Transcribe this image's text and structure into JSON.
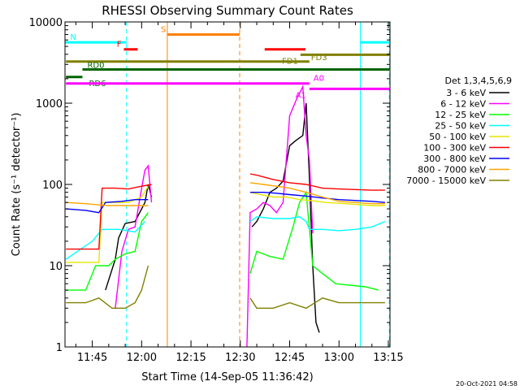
{
  "chart_data": {
    "type": "line",
    "title": "RHESSI Observing Summary Count Rates",
    "xlabel": "Start Time (14-Sep-05 11:36:42)",
    "ylabel": "Count Rate (s⁻¹ detector⁻¹)",
    "y_scale": "log",
    "ylim": [
      1,
      10000
    ],
    "xlim_minutes": [
      696.7,
      795.5
    ],
    "x_ticks": [
      {
        "label": "11:45",
        "min": 705
      },
      {
        "label": "12:00",
        "min": 720
      },
      {
        "label": "12:15",
        "min": 735
      },
      {
        "label": "12:30",
        "min": 750
      },
      {
        "label": "12:45",
        "min": 765
      },
      {
        "label": "13:00",
        "min": 780
      },
      {
        "label": "13:15",
        "min": 795
      }
    ],
    "y_ticks": [
      {
        "label": "1",
        "value": 1
      },
      {
        "label": "10",
        "value": 10
      },
      {
        "label": "100",
        "value": 100
      },
      {
        "label": "1000",
        "value": 1000
      },
      {
        "label": "10000",
        "value": 10000
      }
    ],
    "legend_title": "Det 1,3,4,5,6,9",
    "legend_position": "right",
    "series": [
      {
        "name": "3 - 6 keV",
        "color": "#000000",
        "segments": [
          [
            [
              709,
              5
            ],
            [
              712,
              12
            ],
            [
              713,
              22
            ],
            [
              715,
              33
            ],
            [
              718,
              35
            ],
            [
              721,
              60
            ],
            [
              722,
              100
            ],
            [
              723,
              70
            ]
          ],
          [
            [
              753.5,
              30
            ],
            [
              755,
              35
            ],
            [
              757,
              50
            ],
            [
              759,
              80
            ],
            [
              761,
              90
            ],
            [
              763,
              110
            ],
            [
              765,
              300
            ],
            [
              767,
              350
            ],
            [
              769,
              400
            ],
            [
              770,
              1000
            ],
            [
              771,
              120
            ],
            [
              772,
              10
            ],
            [
              773,
              2
            ],
            [
              774,
              1.5
            ]
          ]
        ]
      },
      {
        "name": "6 - 12 keV",
        "color": "#ff00ff",
        "segments": [
          [
            [
              712,
              3
            ],
            [
              714,
              15
            ],
            [
              716,
              28
            ],
            [
              718,
              30
            ],
            [
              720,
              90
            ],
            [
              721,
              150
            ],
            [
              722,
              170
            ],
            [
              723,
              60
            ]
          ],
          [
            [
              752,
              1
            ],
            [
              753,
              45
            ],
            [
              755,
              50
            ],
            [
              757,
              60
            ],
            [
              759,
              55
            ],
            [
              761,
              45
            ],
            [
              763,
              60
            ],
            [
              765,
              700
            ],
            [
              767,
              1100
            ],
            [
              769,
              1600
            ],
            [
              770,
              400
            ],
            [
              771,
              200
            ],
            [
              772,
              25
            ]
          ]
        ]
      },
      {
        "name": "12 - 25 keV",
        "color": "#00ff00",
        "segments": [
          [
            [
              697,
              5
            ],
            [
              703,
              5
            ],
            [
              706,
              10
            ],
            [
              710,
              10
            ],
            [
              712,
              12
            ],
            [
              715,
              14
            ],
            [
              718,
              15
            ],
            [
              720,
              35
            ],
            [
              722,
              45
            ]
          ],
          [
            [
              753,
              8
            ],
            [
              755,
              15
            ],
            [
              759,
              13
            ],
            [
              763,
              12
            ],
            [
              766,
              30
            ],
            [
              768,
              60
            ],
            [
              770,
              80
            ],
            [
              772,
              10
            ],
            [
              775,
              8
            ],
            [
              779,
              6
            ],
            [
              788,
              5.5
            ],
            [
              792,
              5
            ]
          ]
        ]
      },
      {
        "name": "25 - 50 keV",
        "color": "#00ffff",
        "segments": [
          [
            [
              697,
              12
            ],
            [
              705,
              20
            ],
            [
              708,
              28
            ],
            [
              713,
              28
            ],
            [
              718,
              26
            ],
            [
              721,
              35
            ]
          ],
          [
            [
              753,
              35
            ],
            [
              755,
              40
            ],
            [
              760,
              38
            ],
            [
              765,
              38
            ],
            [
              768,
              40
            ],
            [
              770,
              35
            ],
            [
              771,
              28
            ],
            [
              775,
              28
            ],
            [
              780,
              27
            ],
            [
              785,
              28
            ],
            [
              790,
              30
            ],
            [
              794,
              35
            ]
          ]
        ]
      },
      {
        "name": "50 - 100 keV",
        "color": "#e6e600",
        "segments": [
          [
            [
              697,
              11
            ],
            [
              703,
              11
            ],
            [
              707,
              11
            ],
            [
              708,
              60
            ],
            [
              712,
              60
            ],
            [
              716,
              60
            ],
            [
              720,
              70
            ],
            [
              722,
              95
            ]
          ],
          [
            [
              753,
              80
            ],
            [
              756,
              75
            ],
            [
              760,
              70
            ],
            [
              764,
              70
            ],
            [
              768,
              65
            ],
            [
              772,
              63
            ],
            [
              776,
              60
            ],
            [
              782,
              58
            ],
            [
              790,
              55
            ],
            [
              794,
              55
            ]
          ]
        ]
      },
      {
        "name": "100 - 300 keV",
        "color": "#ff0000",
        "segments": [
          [
            [
              697,
              16
            ],
            [
              703,
              16
            ],
            [
              707,
              16
            ],
            [
              708,
              90
            ],
            [
              712,
              90
            ],
            [
              716,
              88
            ],
            [
              720,
              95
            ],
            [
              723,
              100
            ]
          ],
          [
            [
              753,
              135
            ],
            [
              755,
              130
            ],
            [
              760,
              115
            ],
            [
              765,
              105
            ],
            [
              770,
              100
            ],
            [
              775,
              90
            ],
            [
              780,
              88
            ],
            [
              790,
              85
            ],
            [
              794,
              85
            ]
          ]
        ]
      },
      {
        "name": "300 - 800 keV",
        "color": "#0000ff",
        "segments": [
          [
            [
              697,
              50
            ],
            [
              703,
              48
            ],
            [
              707,
              45
            ],
            [
              709,
              60
            ],
            [
              714,
              62
            ],
            [
              718,
              65
            ],
            [
              722,
              65
            ]
          ],
          [
            [
              753,
              80
            ],
            [
              757,
              80
            ],
            [
              761,
              78
            ],
            [
              765,
              75
            ],
            [
              770,
              72
            ],
            [
              775,
              68
            ],
            [
              780,
              65
            ],
            [
              790,
              62
            ],
            [
              794,
              60
            ]
          ]
        ]
      },
      {
        "name": "800 - 7000 keV",
        "color": "#ffa500",
        "segments": [
          [
            [
              697,
              60
            ],
            [
              703,
              58
            ],
            [
              707,
              56
            ],
            [
              710,
              55
            ],
            [
              714,
              55
            ],
            [
              718,
              55
            ],
            [
              722,
              55
            ]
          ],
          [
            [
              753,
              105
            ],
            [
              757,
              100
            ],
            [
              761,
              95
            ],
            [
              765,
              90
            ],
            [
              770,
              80
            ],
            [
              775,
              70
            ],
            [
              780,
              62
            ],
            [
              790,
              58
            ],
            [
              794,
              58
            ]
          ]
        ]
      },
      {
        "name": "7000 - 15000 keV",
        "color": "#808000",
        "segments": [
          [
            [
              697,
              3.5
            ],
            [
              703,
              3.5
            ],
            [
              707,
              4
            ],
            [
              711,
              3
            ],
            [
              715,
              3
            ],
            [
              718,
              3.5
            ],
            [
              720,
              5
            ],
            [
              722,
              10
            ]
          ],
          [
            [
              753,
              4
            ],
            [
              755,
              3
            ],
            [
              760,
              3
            ],
            [
              765,
              3.5
            ],
            [
              770,
              3
            ],
            [
              775,
              4
            ],
            [
              780,
              3.5
            ],
            [
              790,
              3.5
            ],
            [
              794,
              3.5
            ]
          ]
        ]
      }
    ],
    "annotations": [
      {
        "label": "N",
        "color": "#00ffff",
        "y": 5600,
        "bars": [
          [
            696.8,
            715.4
          ],
          [
            786.5,
            795.3
          ]
        ]
      },
      {
        "label": "S",
        "color": "#ff8000",
        "y": 7000,
        "bars": [
          [
            727.8,
            749.8
          ]
        ]
      },
      {
        "label": "F",
        "color": "#ff0000",
        "y": 4600,
        "bars": [
          [
            714.6,
            718.8
          ],
          [
            757.4,
            769.8
          ]
        ]
      },
      {
        "label": "FD1",
        "color": "#808000",
        "y": 3950,
        "bars": [
          [
            768.3,
            795.3
          ]
        ]
      },
      {
        "label": "FD3",
        "color": "#808000",
        "y": 3250,
        "bars": [
          [
            697,
            771
          ]
        ]
      },
      {
        "label": "RD0",
        "color": "#006400",
        "y": 2600,
        "bars": [
          [
            702,
            795.3
          ]
        ]
      },
      {
        "label": "RD6",
        "color": "#006400",
        "y": 2100,
        "bars": [
          [
            697,
            702
          ]
        ]
      },
      {
        "label": "A0",
        "color": "#ff00ff",
        "y": 1750,
        "bars": [
          [
            697,
            771
          ]
        ]
      },
      {
        "label": "A1",
        "color": "#ff00ff",
        "y": 1500,
        "bars": [
          [
            771,
            795.3
          ]
        ]
      }
    ],
    "vlines": [
      {
        "x": 715.4,
        "color": "#00ffff",
        "style": "dashed"
      },
      {
        "x": 727.8,
        "color": "#ff8000",
        "style": "solid"
      },
      {
        "x": 749.8,
        "color": "#ff8000",
        "style": "dashed"
      },
      {
        "x": 786.5,
        "color": "#00ffff",
        "style": "solid"
      },
      {
        "x": 795.3,
        "color": "#00ffff",
        "style": "dashed"
      }
    ]
  },
  "footer_date": "20-Oct-2021 04:58"
}
